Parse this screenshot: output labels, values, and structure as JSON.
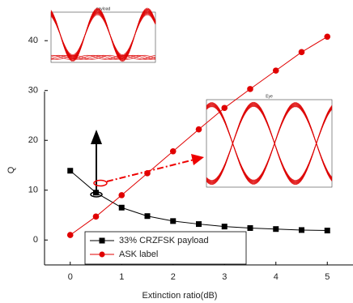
{
  "chart_data": {
    "type": "line",
    "x_label": "Extinction ratio(dB)",
    "y_label": "Q",
    "x": [
      0,
      0.5,
      1,
      1.5,
      2,
      2.5,
      3,
      3.5,
      4,
      4.5,
      5
    ],
    "series": [
      {
        "name": "33% CRZFSK payload",
        "color": "#000000",
        "marker": "square",
        "values": [
          13.9,
          9.5,
          6.5,
          4.8,
          3.8,
          3.2,
          2.7,
          2.4,
          2.2,
          2.0,
          1.9
        ]
      },
      {
        "name": "ASK label",
        "color": "#e00000",
        "marker": "circle",
        "values": [
          1,
          4.7,
          9,
          13.4,
          17.8,
          22.2,
          26.5,
          30.3,
          34,
          37.7,
          40.8
        ]
      }
    ],
    "xlim": [
      -0.5,
      5.5
    ],
    "xticks": [
      0,
      1,
      2,
      3,
      4,
      5
    ],
    "ylim": [
      -5,
      48
    ],
    "yticks": [
      0,
      10,
      20,
      30,
      40
    ],
    "insets": [
      {
        "title": "payload"
      },
      {
        "title": "Eye"
      }
    ]
  }
}
